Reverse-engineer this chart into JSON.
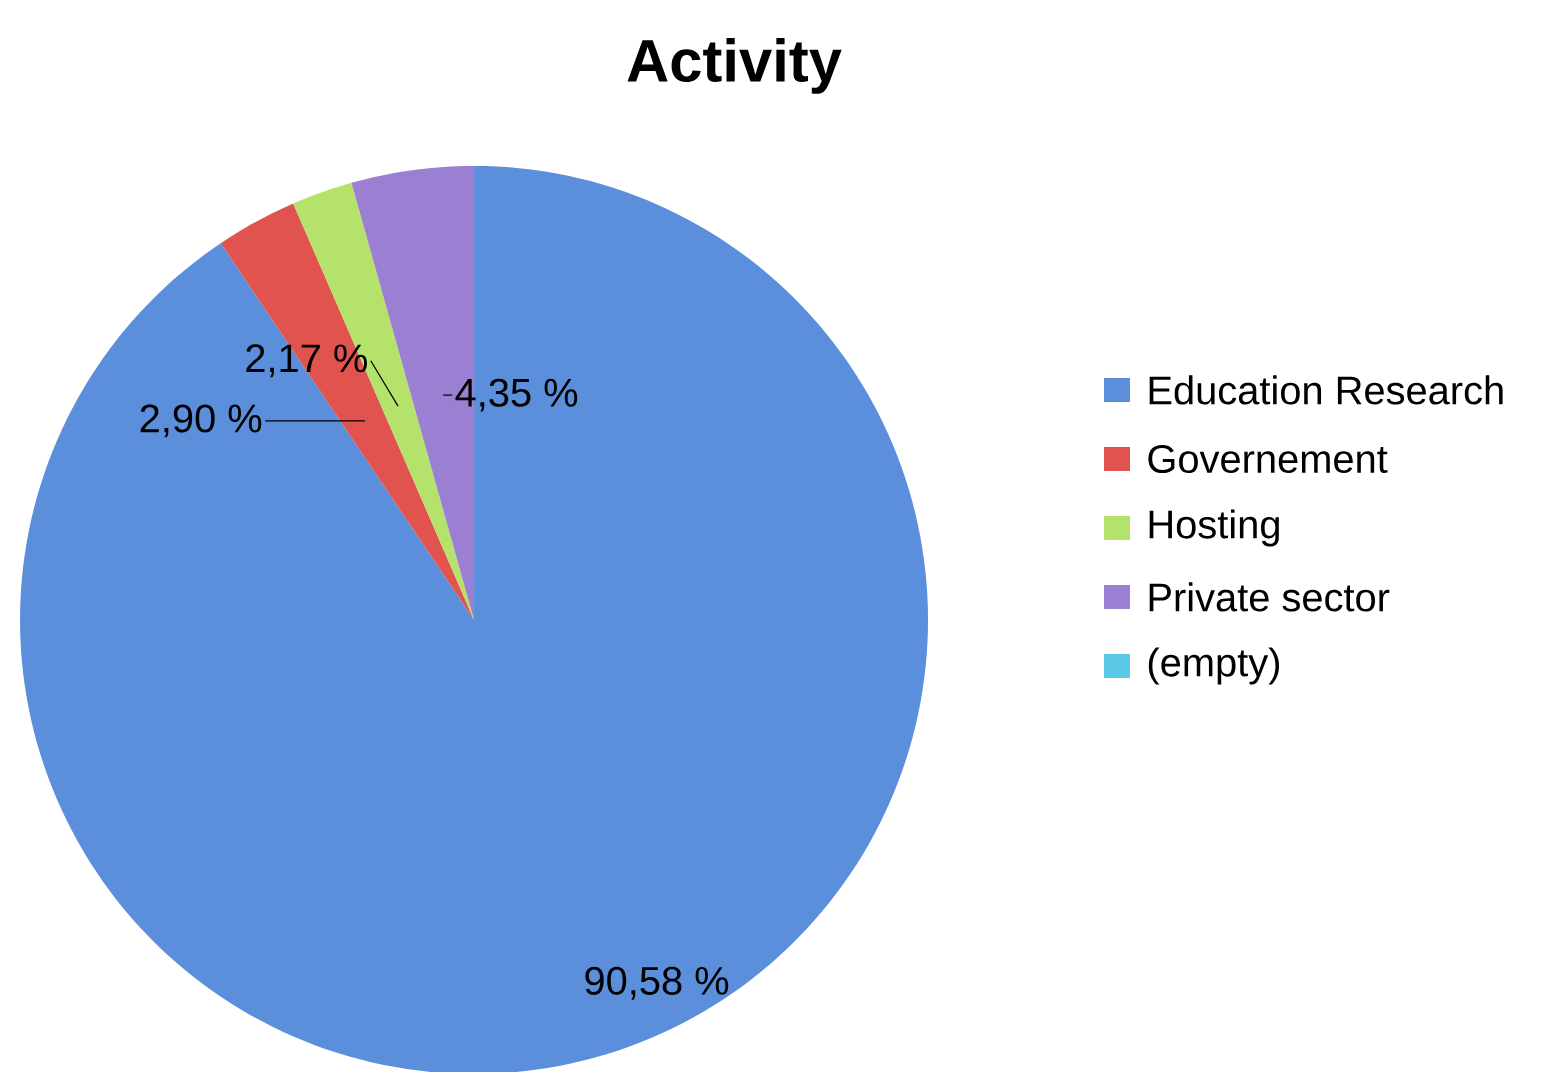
{
  "chart_data": {
    "type": "pie",
    "title": "Activity",
    "categories": [
      "Education Research",
      "Governement",
      "Hosting",
      "Private sector",
      "(empty)"
    ],
    "values": [
      90.58,
      2.9,
      2.17,
      4.35,
      0
    ],
    "colors": [
      "#5b8fdb",
      "#e0534e",
      "#b5e26b",
      "#9b7fd2",
      "#5bc8e6"
    ],
    "value_labels": [
      "90,58 %",
      "2,90 %",
      "2,17 %",
      "4,35 %",
      null
    ],
    "legend": "right"
  }
}
